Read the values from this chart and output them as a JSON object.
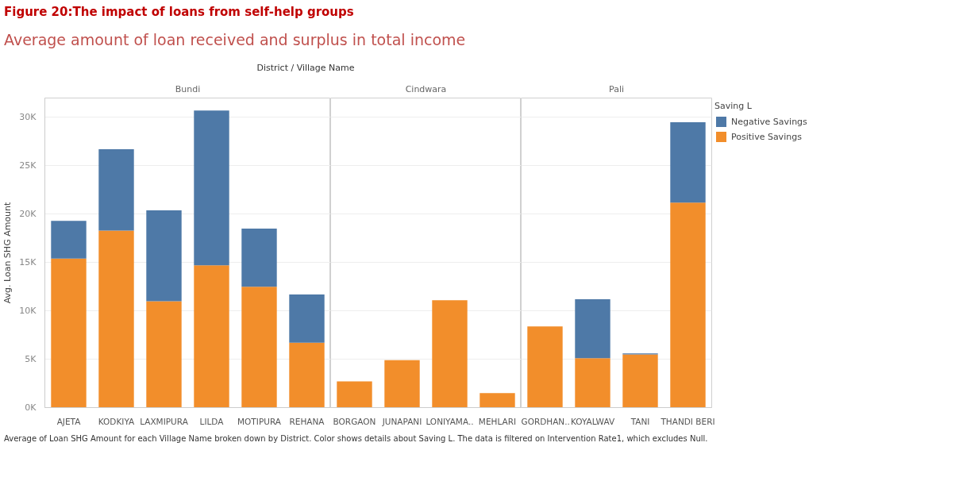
{
  "chart_data": [
    {
      "type": "bar",
      "stacked": true,
      "title": "Average amount of loan received and surplus in total income",
      "subtitle": "Bundi",
      "ylabel": "Avg. Loan SHG Amount",
      "annotations": [
        "Figure 20:The impact of loans from self-help groups",
        "District / Village Name",
        "Average of Loan SHG Amount for each Village Name broken down by District.  Color shows details about Saving L. The data is filtered on Intervention Rate1, which excludes Null."
      ],
      "categories": [
        "AJETA",
        "KODKIYA",
        "LAXMIPURA",
        "LILDA",
        "MOTIPURA",
        "REHANA"
      ],
      "series": [
        {
          "color": "#f28e2b",
          "values": [
            15400,
            18300,
            11000,
            14700,
            12500,
            6700
          ]
        },
        {
          "color": "#4e79a7",
          "values": [
            3900,
            8400,
            9400,
            16000,
            6000,
            5000
          ]
        }
      ],
      "ylim": [
        0,
        32000
      ],
      "yticks": [
        {
          "value": 0,
          "label": "0K"
        },
        {
          "value": 5000,
          "label": "5K"
        },
        {
          "value": 10000,
          "label": "10K"
        },
        {
          "value": 15000,
          "label": "15K"
        },
        {
          "value": 20000,
          "label": "20K"
        },
        {
          "value": 25000,
          "label": "25K"
        },
        {
          "value": 30000,
          "label": "30K"
        }
      ],
      "grid": "y"
    },
    {
      "type": "bar",
      "stacked": true,
      "subtitle": "Cindwara",
      "categories": [
        "BORGAON",
        "JUNAPANI",
        "LONIYAMA..",
        "MEHLARI"
      ],
      "series": [
        {
          "color": "#f28e2b",
          "values": [
            2700,
            4900,
            11100,
            1500
          ]
        }
      ],
      "ylim": [
        0,
        32000
      ],
      "yticks": [
        0,
        5000,
        10000,
        15000,
        20000,
        25000,
        30000
      ],
      "grid": "y",
      "tick_labels": "x"
    },
    {
      "type": "bar",
      "stacked": true,
      "subtitle": "Pali",
      "legend_title": "Saving L",
      "categories": [
        "GORDHAN..",
        "KOYALWAV",
        "TANI",
        "THANDI BERI"
      ],
      "series": [
        {
          "name": "Positive Savings",
          "color": "#f28e2b",
          "values": [
            8400,
            5100,
            5500,
            21200
          ]
        },
        {
          "name": "Negative Savings",
          "color": "#4e79a7",
          "values": [
            null,
            6100,
            100,
            8300
          ]
        }
      ],
      "ylim": [
        0,
        32000
      ],
      "yticks": [
        0,
        5000,
        10000,
        15000,
        20000,
        25000,
        30000
      ],
      "grid": "y",
      "legend": "right",
      "tick_labels": "x"
    }
  ]
}
